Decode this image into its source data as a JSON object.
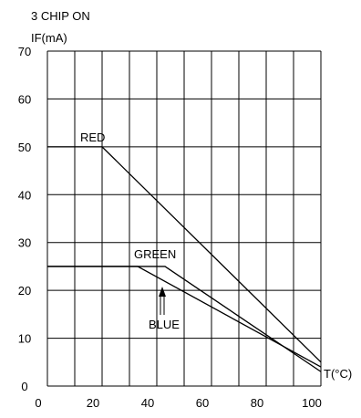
{
  "chart_data": {
    "type": "line",
    "title": "3 CHIP ON",
    "ylabel": "IF(mA)",
    "xlabel": "T(°C)",
    "xlim": [
      0,
      100
    ],
    "ylim": [
      0,
      70
    ],
    "x_ticks": [
      "0",
      "20",
      "40",
      "60",
      "80",
      "100"
    ],
    "y_ticks": [
      "0",
      "10",
      "20",
      "30",
      "40",
      "50",
      "60",
      "70"
    ],
    "grid": true,
    "series": [
      {
        "name": "RED",
        "x": [
          0,
          20,
          100
        ],
        "y": [
          50,
          50,
          5
        ]
      },
      {
        "name": "GREEN",
        "x": [
          0,
          33,
          100
        ],
        "y": [
          25,
          25,
          4
        ]
      },
      {
        "name": "BLUE",
        "x": [
          0,
          43,
          100
        ],
        "y": [
          25,
          25,
          3
        ]
      }
    ]
  },
  "colors": {
    "line": "#000000",
    "grid": "#000000",
    "background": "#ffffff"
  }
}
